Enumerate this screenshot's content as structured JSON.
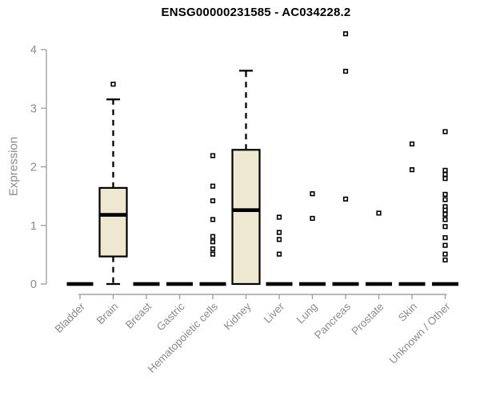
{
  "chart_data": {
    "type": "boxplot",
    "title": "ENSG00000231585 - AC034228.2",
    "xlabel": "",
    "ylabel": "Expression",
    "ylim": [
      0,
      4
    ],
    "yticks": [
      0,
      1,
      2,
      3,
      4
    ],
    "grid": false,
    "categories": [
      "Bladder",
      "Brain",
      "Breast",
      "Gastric",
      "Hematopoietic cells",
      "Kidney",
      "Liver",
      "Lung",
      "Pancreas",
      "Prostate",
      "Skin",
      "Unknown / Other"
    ],
    "series": [
      {
        "name": "Bladder",
        "q1": 0,
        "median": 0,
        "q3": 0,
        "whisker_low": 0,
        "whisker_high": 0,
        "outliers": []
      },
      {
        "name": "Brain",
        "q1": 0.47,
        "median": 1.18,
        "q3": 1.64,
        "whisker_low": 0,
        "whisker_high": 3.15,
        "outliers": [
          3.41
        ]
      },
      {
        "name": "Breast",
        "q1": 0,
        "median": 0,
        "q3": 0,
        "whisker_low": 0,
        "whisker_high": 0,
        "outliers": []
      },
      {
        "name": "Gastric",
        "q1": 0,
        "median": 0,
        "q3": 0,
        "whisker_low": 0,
        "whisker_high": 0,
        "outliers": []
      },
      {
        "name": "Hematopoietic cells",
        "q1": 0,
        "median": 0,
        "q3": 0,
        "whisker_low": 0,
        "whisker_high": 0,
        "outliers": [
          2.19,
          1.67,
          1.42,
          1.1,
          0.81,
          0.72,
          0.6,
          0.51
        ]
      },
      {
        "name": "Kidney",
        "q1": 0,
        "median": 1.26,
        "q3": 2.29,
        "whisker_low": 0,
        "whisker_high": 3.64,
        "outliers": []
      },
      {
        "name": "Liver",
        "q1": 0,
        "median": 0,
        "q3": 0,
        "whisker_low": 0,
        "whisker_high": 0,
        "outliers": [
          1.14,
          0.88,
          0.76,
          0.51
        ]
      },
      {
        "name": "Lung",
        "q1": 0,
        "median": 0,
        "q3": 0,
        "whisker_low": 0,
        "whisker_high": 0,
        "outliers": [
          1.54,
          1.12
        ]
      },
      {
        "name": "Pancreas",
        "q1": 0,
        "median": 0,
        "q3": 0,
        "whisker_low": 0,
        "whisker_high": 0,
        "outliers": [
          4.27,
          3.63,
          1.45
        ]
      },
      {
        "name": "Prostate",
        "q1": 0,
        "median": 0,
        "q3": 0,
        "whisker_low": 0,
        "whisker_high": 0,
        "outliers": [
          1.21
        ]
      },
      {
        "name": "Skin",
        "q1": 0,
        "median": 0,
        "q3": 0,
        "whisker_low": 0,
        "whisker_high": 0,
        "outliers": [
          2.39,
          1.95
        ]
      },
      {
        "name": "Unknown / Other",
        "q1": 0,
        "median": 0,
        "q3": 0,
        "whisker_low": 0,
        "whisker_high": 0,
        "outliers": [
          2.6,
          1.94,
          1.87,
          1.8,
          1.53,
          1.44,
          1.32,
          1.26,
          1.19,
          1.1,
          0.98,
          0.79,
          0.66,
          0.51,
          0.41
        ]
      }
    ],
    "colors": {
      "box_fill": "#EDE8CF",
      "box_stroke": "#000000",
      "median": "#000000",
      "outlier_stroke": "#000000",
      "outlier_fill": "#ffffff",
      "axis": "#A3A3A3",
      "tick_label": "#8C8C8C",
      "title": "#000000"
    }
  }
}
